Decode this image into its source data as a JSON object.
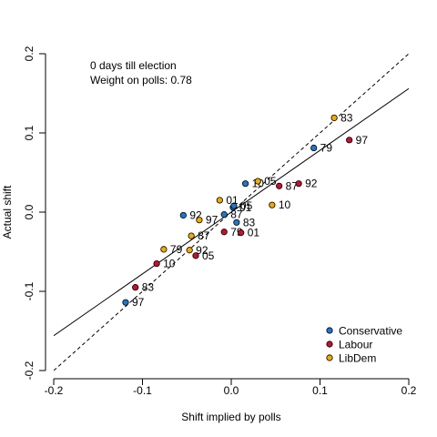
{
  "chart_data": {
    "type": "scatter",
    "xlabel": "Shift implied by polls",
    "ylabel": "Actual shift",
    "xlim": [
      -0.2,
      0.2
    ],
    "ylim": [
      -0.2,
      0.2
    ],
    "x_ticks": [
      -0.2,
      -0.1,
      0.0,
      0.1,
      0.2
    ],
    "x_tick_labels": [
      "-0.2",
      "-0.1",
      "0.0",
      "0.1",
      "0.2"
    ],
    "y_ticks": [
      -0.2,
      -0.1,
      0.0,
      0.1,
      0.2
    ],
    "y_tick_labels": [
      "-0.2",
      "-0.1",
      "0.0",
      "0.1",
      "0.2"
    ],
    "annotations": [
      "0 days till election",
      "Weight on polls: 0.78"
    ],
    "fit_line": {
      "slope": 0.78,
      "intercept": 0.0,
      "style": "solid"
    },
    "reference_line": {
      "slope": 1,
      "intercept": 0,
      "style": "dashed"
    },
    "legend_position": "bottom-right",
    "series": [
      {
        "name": "Conservative",
        "color": "#1F78C8",
        "points": [
          {
            "label": "97",
            "x": -0.119,
            "y": -0.114
          },
          {
            "label": "92",
            "x": -0.054,
            "y": -0.004
          },
          {
            "label": "87",
            "x": -0.008,
            "y": -0.003
          },
          {
            "label": "83",
            "x": 0.006,
            "y": -0.013
          },
          {
            "label": "01",
            "x": 0.002,
            "y": 0.006
          },
          {
            "label": "05",
            "x": 0.003,
            "y": 0.008
          },
          {
            "label": "10",
            "x": 0.016,
            "y": 0.036
          },
          {
            "label": "79",
            "x": 0.093,
            "y": 0.081
          }
        ]
      },
      {
        "name": "Labour",
        "color": "#C8102E",
        "points": [
          {
            "label": "83",
            "x": -0.108,
            "y": -0.095
          },
          {
            "label": "10",
            "x": -0.084,
            "y": -0.065
          },
          {
            "label": "05",
            "x": -0.04,
            "y": -0.055
          },
          {
            "label": "79",
            "x": -0.008,
            "y": -0.025
          },
          {
            "label": "01",
            "x": 0.011,
            "y": -0.026
          },
          {
            "label": "87",
            "x": 0.054,
            "y": 0.033
          },
          {
            "label": "92",
            "x": 0.076,
            "y": 0.036
          },
          {
            "label": "97",
            "x": 0.133,
            "y": 0.091
          }
        ]
      },
      {
        "name": "LibDem",
        "color": "#F2A900",
        "points": [
          {
            "label": "79",
            "x": -0.076,
            "y": -0.047
          },
          {
            "label": "92",
            "x": -0.047,
            "y": -0.048
          },
          {
            "label": "87",
            "x": -0.045,
            "y": -0.03
          },
          {
            "label": "97",
            "x": -0.036,
            "y": -0.01
          },
          {
            "label": "01",
            "x": -0.013,
            "y": 0.015
          },
          {
            "label": "05",
            "x": 0.03,
            "y": 0.039
          },
          {
            "label": "10",
            "x": 0.046,
            "y": 0.009
          },
          {
            "label": "83",
            "x": 0.116,
            "y": 0.119
          }
        ]
      }
    ]
  }
}
